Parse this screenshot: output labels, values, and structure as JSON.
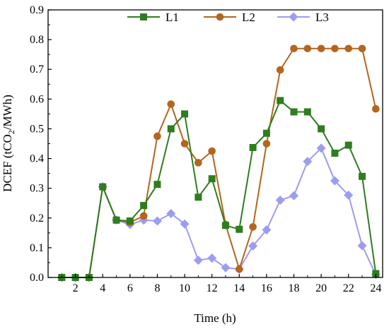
{
  "chart_data": {
    "type": "line",
    "xlabel": "Time (h)",
    "ylabel_main": "DCEF (tCO",
    "ylabel_sub": "2",
    "ylabel_tail": "/MWh)",
    "xlim": [
      0,
      24.5
    ],
    "ylim": [
      0,
      0.9
    ],
    "x_ticks": [
      2,
      4,
      6,
      8,
      10,
      12,
      14,
      16,
      18,
      20,
      22,
      24
    ],
    "y_ticks": [
      "0.0",
      "0.1",
      "0.2",
      "0.3",
      "0.4",
      "0.5",
      "0.6",
      "0.7",
      "0.8",
      "0.9"
    ],
    "legend_position": "top",
    "x": [
      1,
      2,
      3,
      4,
      5,
      6,
      7,
      8,
      9,
      10,
      11,
      12,
      13,
      14,
      15,
      16,
      17,
      18,
      19,
      20,
      21,
      22,
      23,
      24
    ],
    "series": [
      {
        "name": "L1",
        "color": "#2e7d1e",
        "marker": "square",
        "values": [
          0.0,
          0.0,
          0.0,
          0.305,
          0.193,
          0.19,
          0.242,
          0.313,
          0.5,
          0.55,
          0.27,
          0.332,
          0.175,
          0.162,
          0.437,
          0.485,
          0.595,
          0.557,
          0.557,
          0.5,
          0.418,
          0.445,
          0.34,
          0.013
        ]
      },
      {
        "name": "L2",
        "color": "#b5651d",
        "marker": "circle",
        "values": [
          0.0,
          0.0,
          0.0,
          0.305,
          0.193,
          0.185,
          0.207,
          0.475,
          0.583,
          0.45,
          0.386,
          0.425,
          0.178,
          0.028,
          0.17,
          0.45,
          0.698,
          0.77,
          0.77,
          0.77,
          0.77,
          0.77,
          0.77,
          0.567
        ]
      },
      {
        "name": "L3",
        "color": "#9c9cf0",
        "marker": "diamond",
        "values": [
          0.0,
          0.0,
          0.0,
          0.305,
          0.193,
          0.178,
          0.193,
          0.19,
          0.215,
          0.18,
          0.058,
          0.065,
          0.033,
          0.028,
          0.106,
          0.16,
          0.26,
          0.275,
          0.39,
          0.435,
          0.325,
          0.277,
          0.107,
          0.01
        ]
      }
    ]
  }
}
